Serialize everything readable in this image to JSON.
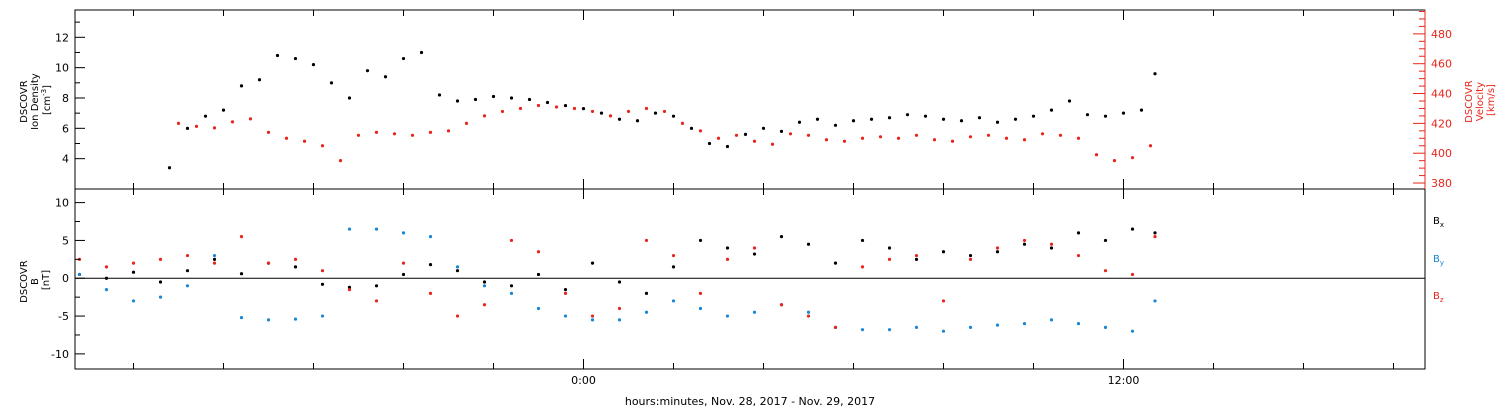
{
  "xaxis": {
    "label": "hours:minutes, Nov. 28, 2017 - Nov. 29, 2017",
    "range_hours": [
      -11.3,
      18.7
    ],
    "major_ticks": [
      {
        "h": 0,
        "label": "0:00"
      },
      {
        "h": 12,
        "label": "12:00"
      }
    ]
  },
  "chart_data": [
    {
      "type": "scatter",
      "panel": "top",
      "ylabel": "DSCOVR Ion Density [cm^-3]",
      "ylim": [
        2.0,
        13.8
      ],
      "yticks": [
        4,
        6,
        8,
        10,
        12
      ],
      "y2label": "DSCOVR Velocity [km/s]",
      "y2lim": [
        376,
        496
      ],
      "y2ticks": [
        380,
        400,
        420,
        440,
        460,
        480
      ],
      "series": [
        {
          "name": "Ion Density",
          "axis": "left",
          "color": "#000000",
          "x": [
            -9.2,
            -8.8,
            -8.4,
            -8.0,
            -7.6,
            -7.2,
            -6.8,
            -6.4,
            -6.0,
            -5.6,
            -5.2,
            -4.8,
            -4.4,
            -4.0,
            -3.6,
            -3.2,
            -2.8,
            -2.4,
            -2.0,
            -1.6,
            -1.2,
            -0.8,
            -0.4,
            0.0,
            0.4,
            0.8,
            1.2,
            1.6,
            2.0,
            2.4,
            2.8,
            3.2,
            3.6,
            4.0,
            4.4,
            4.8,
            5.2,
            5.6,
            6.0,
            6.4,
            6.8,
            7.2,
            7.6,
            8.0,
            8.4,
            8.8,
            9.2,
            9.6,
            10.0,
            10.4,
            10.8,
            11.2,
            11.6,
            12.0,
            12.4,
            12.7
          ],
          "values": [
            3.4,
            6.0,
            6.8,
            7.2,
            8.8,
            9.2,
            10.8,
            10.6,
            10.2,
            9.0,
            8.0,
            9.8,
            9.4,
            10.6,
            11.0,
            8.2,
            7.8,
            7.9,
            8.1,
            8.0,
            7.9,
            7.7,
            7.5,
            7.3,
            7.0,
            6.6,
            6.5,
            7.0,
            6.8,
            6.0,
            5.0,
            4.8,
            5.6,
            6.0,
            5.8,
            6.4,
            6.6,
            6.2,
            6.5,
            6.6,
            6.7,
            6.9,
            6.8,
            6.6,
            6.5,
            6.7,
            6.4,
            6.6,
            6.8,
            7.2,
            7.8,
            6.9,
            6.8,
            7.0,
            7.2,
            9.6
          ]
        },
        {
          "name": "Velocity",
          "axis": "right",
          "color": "#e8251b",
          "x": [
            -9.0,
            -8.6,
            -8.2,
            -7.8,
            -7.4,
            -7.0,
            -6.6,
            -6.2,
            -5.8,
            -5.4,
            -5.0,
            -4.6,
            -4.2,
            -3.8,
            -3.4,
            -3.0,
            -2.6,
            -2.2,
            -1.8,
            -1.4,
            -1.0,
            -0.6,
            -0.2,
            0.2,
            0.6,
            1.0,
            1.4,
            1.8,
            2.2,
            2.6,
            3.0,
            3.4,
            3.8,
            4.2,
            4.6,
            5.0,
            5.4,
            5.8,
            6.2,
            6.6,
            7.0,
            7.4,
            7.8,
            8.2,
            8.6,
            9.0,
            9.4,
            9.8,
            10.2,
            10.6,
            11.0,
            11.4,
            11.8,
            12.2,
            12.6
          ],
          "values": [
            420,
            418,
            417,
            421,
            423,
            414,
            410,
            408,
            405,
            395,
            412,
            414,
            413,
            412,
            414,
            415,
            420,
            425,
            428,
            430,
            432,
            431,
            430,
            428,
            425,
            428,
            430,
            428,
            420,
            415,
            410,
            412,
            408,
            406,
            413,
            412,
            409,
            408,
            410,
            411,
            410,
            412,
            409,
            408,
            411,
            412,
            410,
            409,
            413,
            412,
            410,
            399,
            395,
            397,
            405
          ]
        }
      ]
    },
    {
      "type": "scatter",
      "panel": "bottom",
      "ylabel": "DSCOVR B [nT]",
      "ylim": [
        -12.0,
        11.8
      ],
      "yticks": [
        -10,
        -5,
        0,
        5,
        10
      ],
      "zero_line": true,
      "series": [
        {
          "name": "Bx",
          "color": "#000000",
          "x": [
            -11.2,
            -10.6,
            -10.0,
            -9.4,
            -8.8,
            -8.2,
            -7.6,
            -7.0,
            -6.4,
            -5.8,
            -5.2,
            -4.6,
            -4.0,
            -3.4,
            -2.8,
            -2.2,
            -1.6,
            -1.0,
            -0.4,
            0.2,
            0.8,
            1.4,
            2.0,
            2.6,
            3.2,
            3.8,
            4.4,
            5.0,
            5.6,
            6.2,
            6.8,
            7.4,
            8.0,
            8.6,
            9.2,
            9.8,
            10.4,
            11.0,
            11.6,
            12.2,
            12.7
          ],
          "values": [
            0.5,
            0.0,
            0.8,
            -0.5,
            1.0,
            2.5,
            0.6,
            2.0,
            1.5,
            -0.8,
            -1.2,
            -1.0,
            0.5,
            1.8,
            1.0,
            -0.5,
            -1.0,
            0.5,
            -1.5,
            2.0,
            -0.5,
            -2.0,
            1.5,
            5.0,
            4.0,
            3.2,
            5.5,
            4.5,
            2.0,
            5.0,
            4.0,
            2.5,
            3.5,
            3.0,
            3.5,
            4.5,
            4.0,
            6.0,
            5.0,
            6.5,
            6.0
          ]
        },
        {
          "name": "By",
          "color": "#1a86d6",
          "x": [
            -11.2,
            -10.6,
            -10.0,
            -9.4,
            -8.8,
            -8.2,
            -7.6,
            -7.0,
            -6.4,
            -5.8,
            -5.2,
            -4.6,
            -4.0,
            -3.4,
            -2.8,
            -2.2,
            -1.6,
            -1.0,
            -0.4,
            0.2,
            0.8,
            1.4,
            2.0,
            2.6,
            3.2,
            3.8,
            4.4,
            5.0,
            5.6,
            6.2,
            6.8,
            7.4,
            8.0,
            8.6,
            9.2,
            9.8,
            10.4,
            11.0,
            11.6,
            12.2,
            12.7
          ],
          "values": [
            0.5,
            -1.5,
            -3.0,
            -2.5,
            -1.0,
            3.0,
            -5.2,
            -5.5,
            -5.4,
            -5.0,
            6.5,
            6.5,
            6.0,
            5.5,
            1.5,
            -1.0,
            -2.0,
            -4.0,
            -5.0,
            -5.5,
            -5.5,
            -4.5,
            -3.0,
            -4.0,
            -5.0,
            -4.5,
            -3.5,
            -4.5,
            -6.5,
            -6.8,
            -6.8,
            -6.5,
            -7.0,
            -6.5,
            -6.2,
            -6.0,
            -5.5,
            -6.0,
            -6.5,
            -7.0,
            -3.0
          ]
        },
        {
          "name": "Bz",
          "color": "#e8251b",
          "x": [
            -11.2,
            -10.6,
            -10.0,
            -9.4,
            -8.8,
            -8.2,
            -7.6,
            -7.0,
            -6.4,
            -5.8,
            -5.2,
            -4.6,
            -4.0,
            -3.4,
            -2.8,
            -2.2,
            -1.6,
            -1.0,
            -0.4,
            0.2,
            0.8,
            1.4,
            2.0,
            2.6,
            3.2,
            3.8,
            4.4,
            5.0,
            5.6,
            6.2,
            6.8,
            7.4,
            8.0,
            8.6,
            9.2,
            9.8,
            10.4,
            11.0,
            11.6,
            12.2,
            12.7
          ],
          "values": [
            2.5,
            1.5,
            2.0,
            2.5,
            3.0,
            2.0,
            5.5,
            2.0,
            2.5,
            1.0,
            -1.5,
            -3.0,
            2.0,
            -2.0,
            -5.0,
            -3.5,
            5.0,
            3.5,
            -2.0,
            -5.0,
            -4.0,
            5.0,
            3.0,
            -2.0,
            2.5,
            4.0,
            -3.5,
            -5.0,
            -6.5,
            1.5,
            2.5,
            3.0,
            -3.0,
            2.5,
            4.0,
            5.0,
            4.5,
            3.0,
            1.0,
            0.5,
            5.5
          ]
        }
      ],
      "legend": {
        "placement": "right",
        "entries": [
          {
            "label": "B",
            "sub": "x",
            "color": "#000000"
          },
          {
            "label": "B",
            "sub": "y",
            "color": "#1a86d6"
          },
          {
            "label": "B",
            "sub": "z",
            "color": "#e8251b"
          }
        ]
      }
    }
  ]
}
